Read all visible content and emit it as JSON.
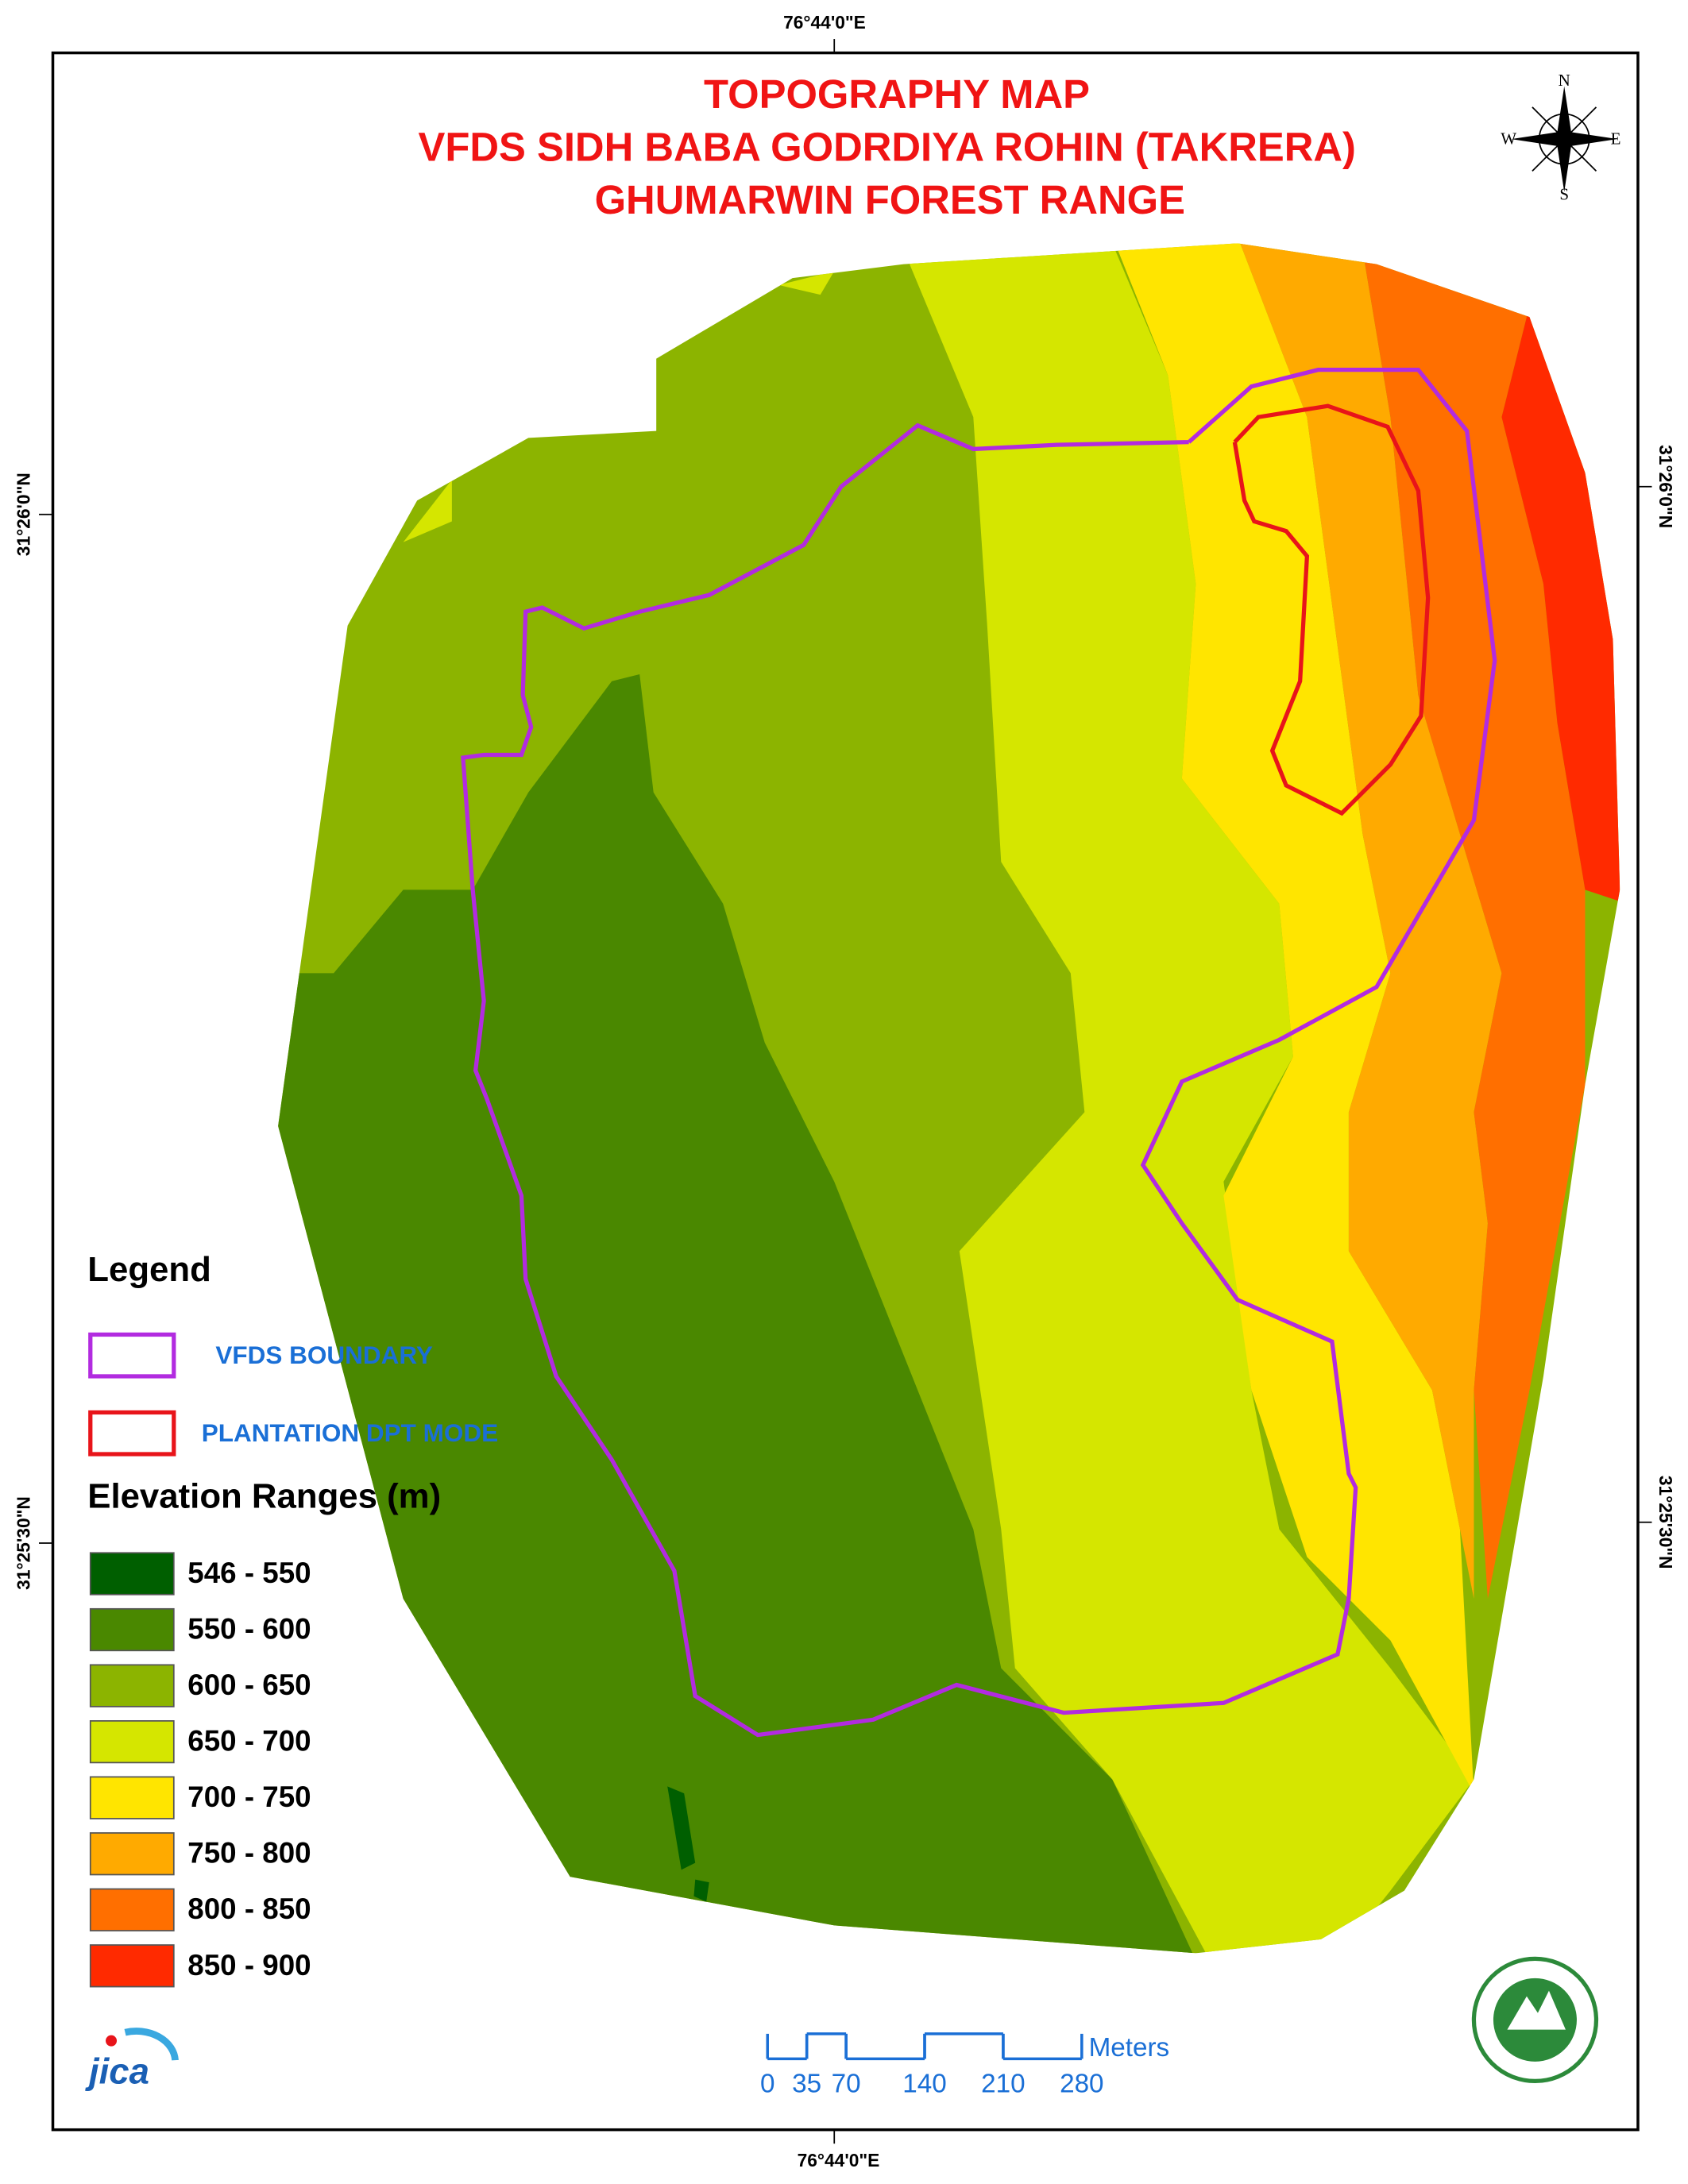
{
  "title": [
    "TOPOGRAPHY MAP",
    "VFDS SIDH BABA GODRDIYA ROHIN (TAKRERA)",
    "GHUMARWIN FOREST RANGE"
  ],
  "graticule": {
    "top": "76°44'0\"E",
    "bottom": "76°44'0\"E",
    "left": [
      "31°26'0\"N",
      "31°25'30\"N"
    ],
    "right": [
      "31°26'0\"N",
      "31°25'30\"N"
    ]
  },
  "compass": {
    "north": "N",
    "east": "E",
    "south": "S",
    "west": "W"
  },
  "legend": {
    "title": "Legend",
    "boundaries": [
      {
        "label": "VFDS BOUNDARY",
        "color": "#b22be0"
      },
      {
        "label": "PLANTATION DPT MODE",
        "color": "#e8141a"
      }
    ],
    "elevation_title": "Elevation Ranges (m)",
    "elevation": [
      {
        "label": "546 - 550",
        "color": "#005f00"
      },
      {
        "label": "550 - 600",
        "color": "#4a8800"
      },
      {
        "label": "600 - 650",
        "color": "#8cb400"
      },
      {
        "label": "650 - 700",
        "color": "#d5e600"
      },
      {
        "label": "700 - 750",
        "color": "#ffe500"
      },
      {
        "label": "750 - 800",
        "color": "#ffaa00"
      },
      {
        "label": "800 - 850",
        "color": "#ff6f00"
      },
      {
        "label": "850 - 900",
        "color": "#ff2a00"
      }
    ]
  },
  "scale_bar": {
    "ticks": [
      0,
      35,
      70,
      140,
      210,
      280
    ],
    "unit": "Meters"
  },
  "logos": {
    "left": "jica"
  }
}
